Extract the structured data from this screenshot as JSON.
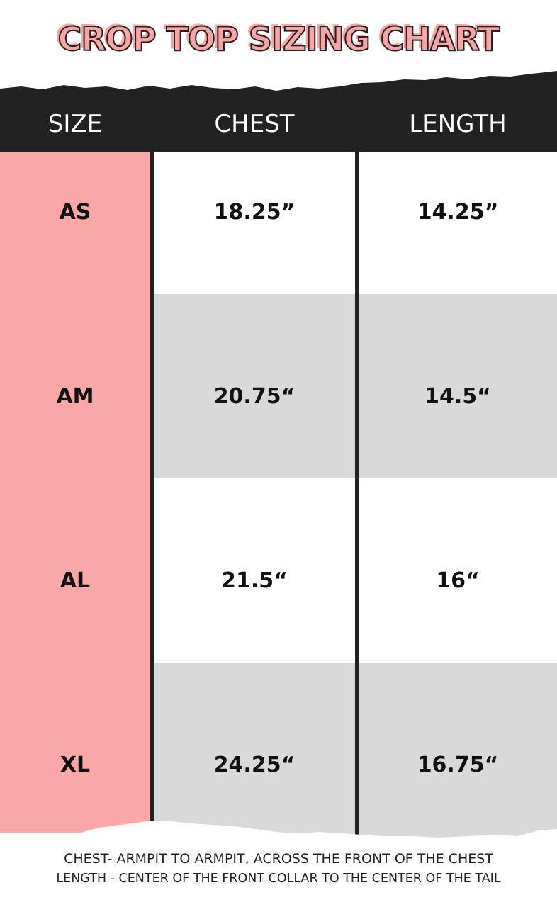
{
  "title": "CROP TOP SIZING CHART",
  "colors": {
    "pink": "#f9a8a7",
    "dark": "#222222",
    "gray": "#d9d9d9"
  },
  "table": {
    "headers": [
      "SIZE",
      "CHEST",
      "LENGTH"
    ],
    "rows": [
      {
        "size": "AS",
        "chest": "18.25”",
        "length": "14.25”"
      },
      {
        "size": "AM",
        "chest": "20.75“",
        "length": "14.5“"
      },
      {
        "size": "AL",
        "chest": "21.5“",
        "length": "16“"
      },
      {
        "size": "XL",
        "chest": "24.25“",
        "length": "16.75“"
      }
    ]
  },
  "notes": [
    "CHEST- ARMPIT TO ARMPIT, ACROSS THE FRONT OF THE CHEST",
    "LENGTH - CENTER OF THE FRONT COLLAR TO THE CENTER OF THE TAIL"
  ]
}
